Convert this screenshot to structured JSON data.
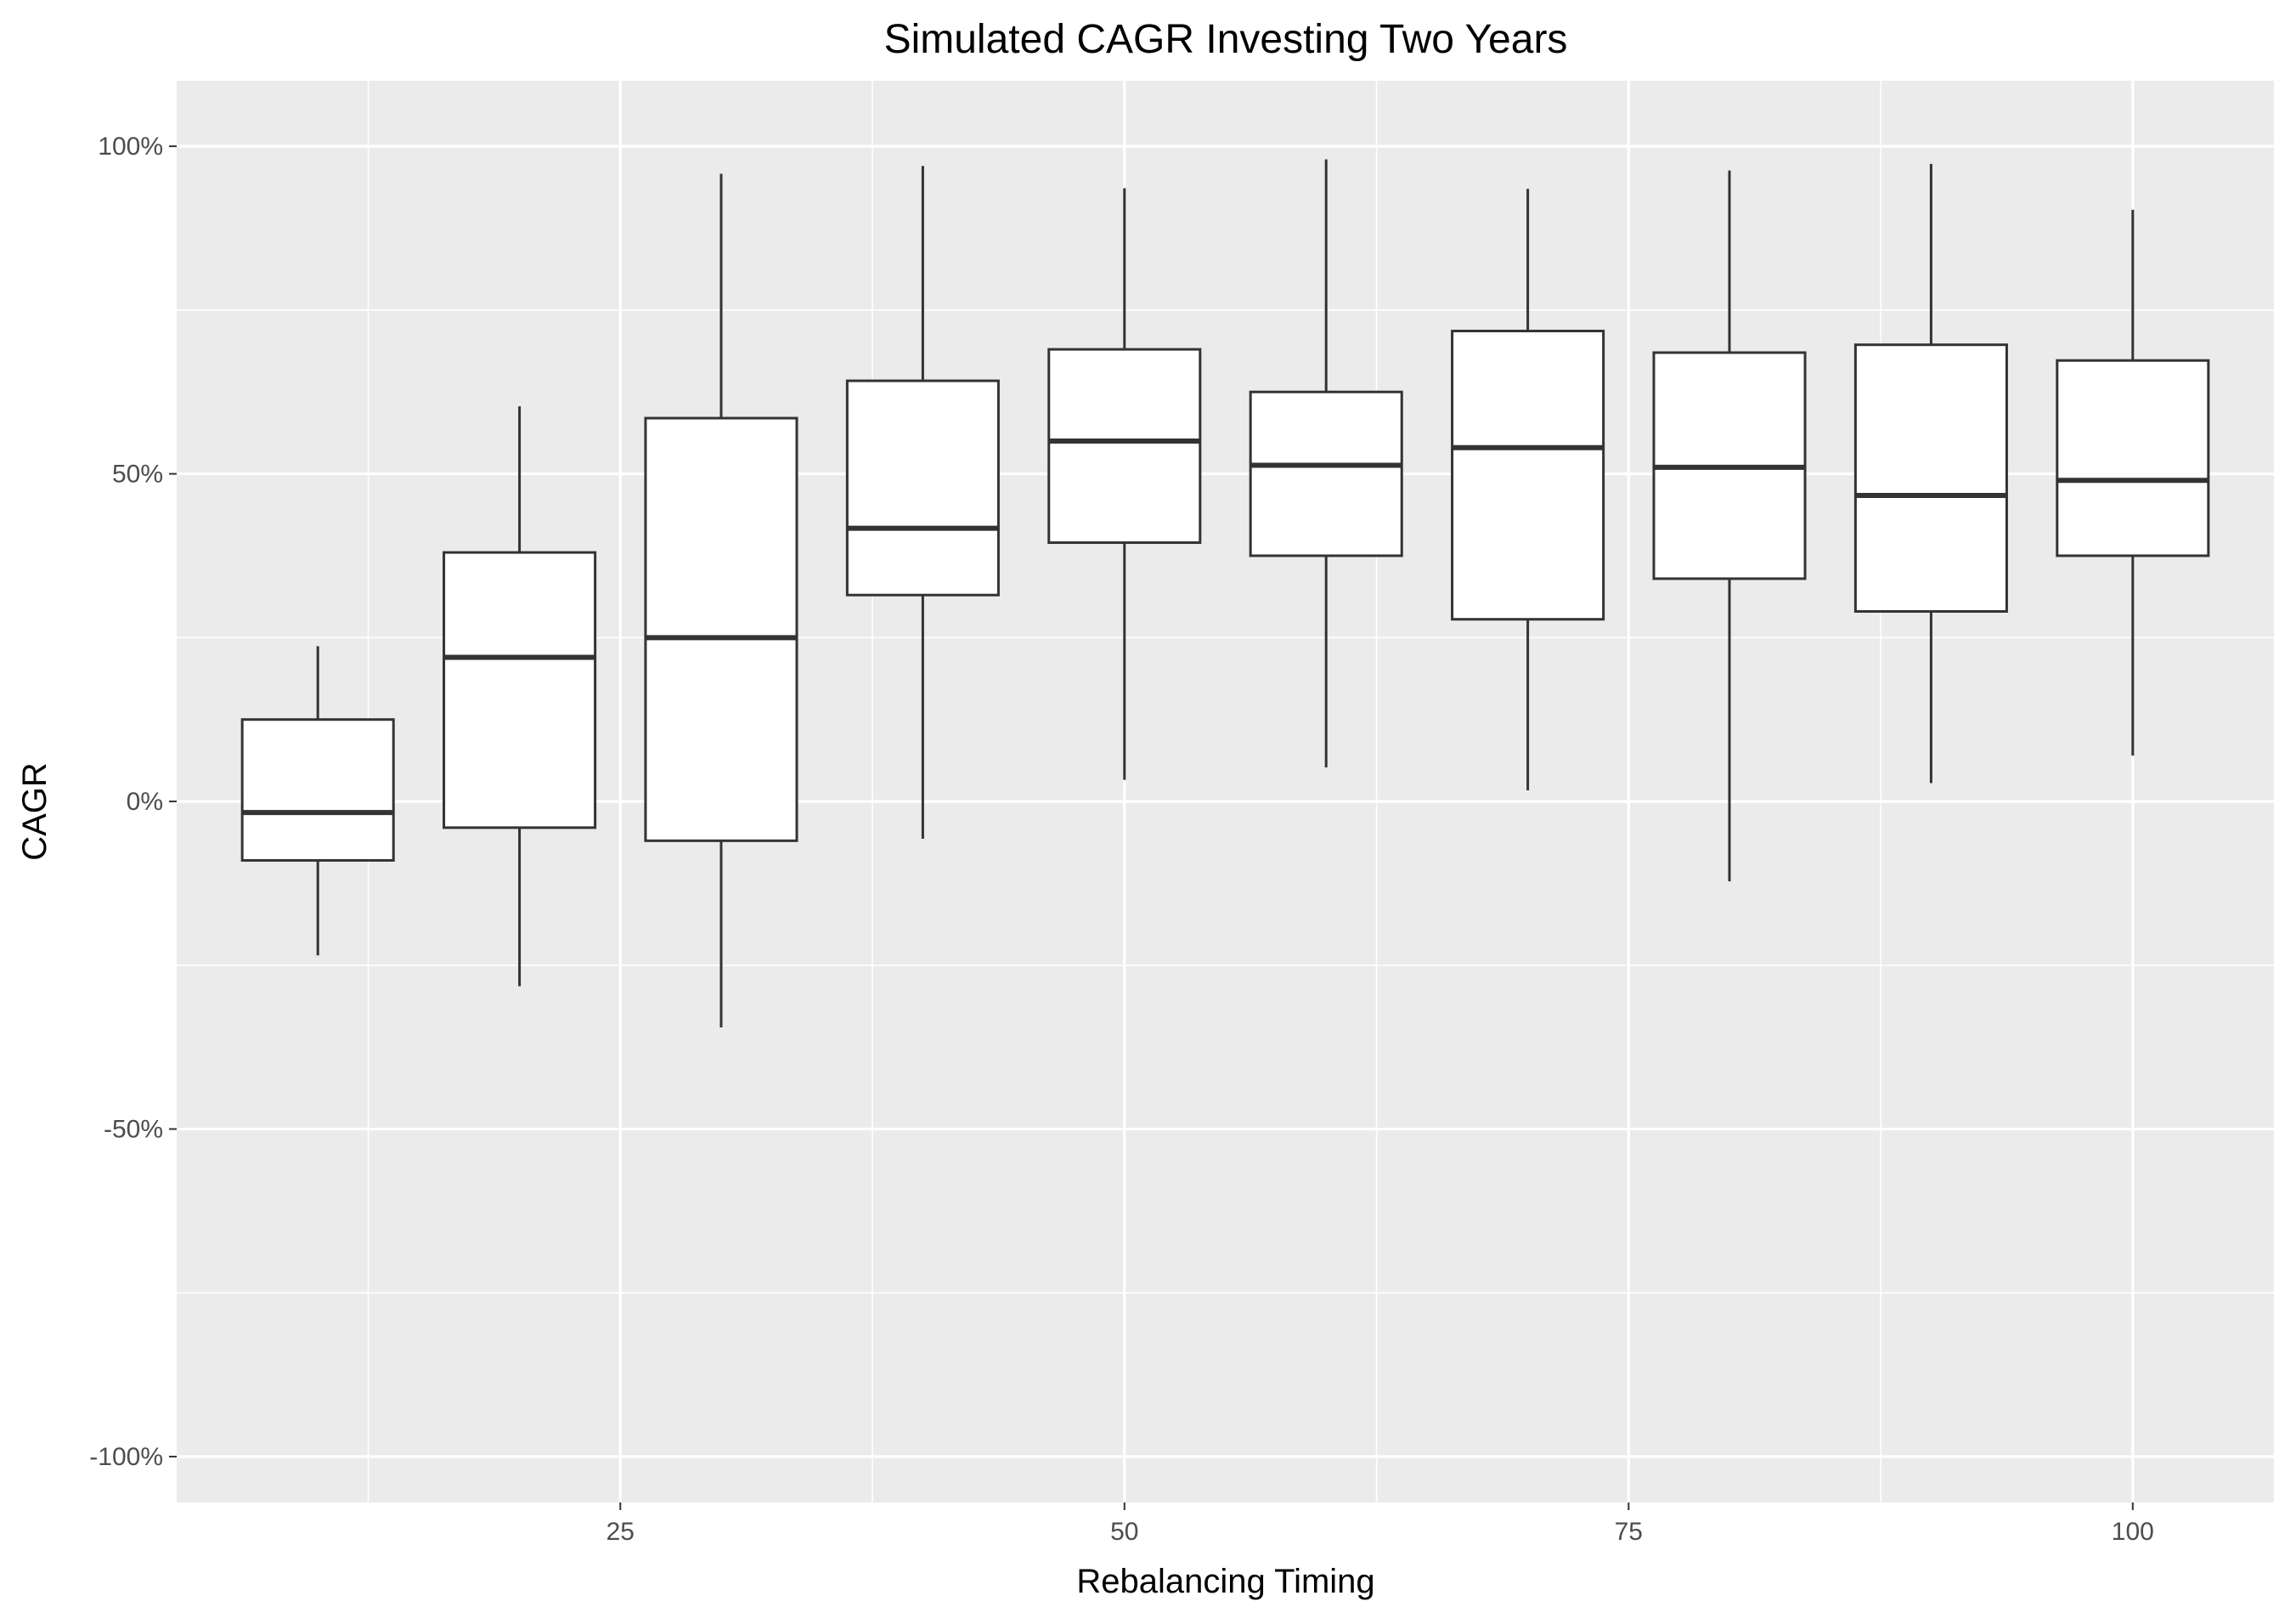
{
  "chart_data": {
    "type": "boxplot",
    "title": "Simulated CAGR Investing Two Years",
    "xlabel": "Rebalancing Timing",
    "ylabel": "CAGR",
    "xlim": [
      3,
      107
    ],
    "ylim": [
      -107,
      110
    ],
    "x_ticks": [
      25,
      50,
      75,
      100
    ],
    "x_tick_labels": [
      "25",
      "50",
      "75",
      "100"
    ],
    "y_ticks": [
      -100,
      -50,
      0,
      50,
      100
    ],
    "y_tick_labels": [
      "-100%",
      "-50%",
      "0%",
      "50%",
      "100%"
    ],
    "grid": true,
    "box_width": 7.5,
    "boxes": [
      {
        "x": 10,
        "whisker_low": -23.5,
        "q1": -9.0,
        "median": -1.7,
        "q3": 12.5,
        "whisker_high": 23.7
      },
      {
        "x": 20,
        "whisker_low": -28.2,
        "q1": -4.0,
        "median": 22.0,
        "q3": 38.0,
        "whisker_high": 60.3
      },
      {
        "x": 30,
        "whisker_low": -34.5,
        "q1": -6.0,
        "median": 25.0,
        "q3": 58.5,
        "whisker_high": 95.8
      },
      {
        "x": 40,
        "whisker_low": -5.7,
        "q1": 31.5,
        "median": 41.7,
        "q3": 64.2,
        "whisker_high": 97.0
      },
      {
        "x": 50,
        "whisker_low": 3.3,
        "q1": 39.5,
        "median": 55.0,
        "q3": 69.0,
        "whisker_high": 93.6
      },
      {
        "x": 60,
        "whisker_low": 5.2,
        "q1": 37.5,
        "median": 51.3,
        "q3": 62.5,
        "whisker_high": 98.0
      },
      {
        "x": 70,
        "whisker_low": 1.7,
        "q1": 27.8,
        "median": 54.0,
        "q3": 71.8,
        "whisker_high": 93.5
      },
      {
        "x": 80,
        "whisker_low": -12.2,
        "q1": 34.0,
        "median": 51.0,
        "q3": 68.5,
        "whisker_high": 96.3
      },
      {
        "x": 90,
        "whisker_low": 2.8,
        "q1": 29.0,
        "median": 46.7,
        "q3": 69.7,
        "whisker_high": 97.3
      },
      {
        "x": 100,
        "whisker_low": 7.0,
        "q1": 37.5,
        "median": 49.0,
        "q3": 67.3,
        "whisker_high": 90.3
      }
    ],
    "colors": {
      "panel": "#ebebeb",
      "grid": "#ffffff",
      "box_fill": "#ffffff",
      "box_line": "#333333"
    }
  }
}
